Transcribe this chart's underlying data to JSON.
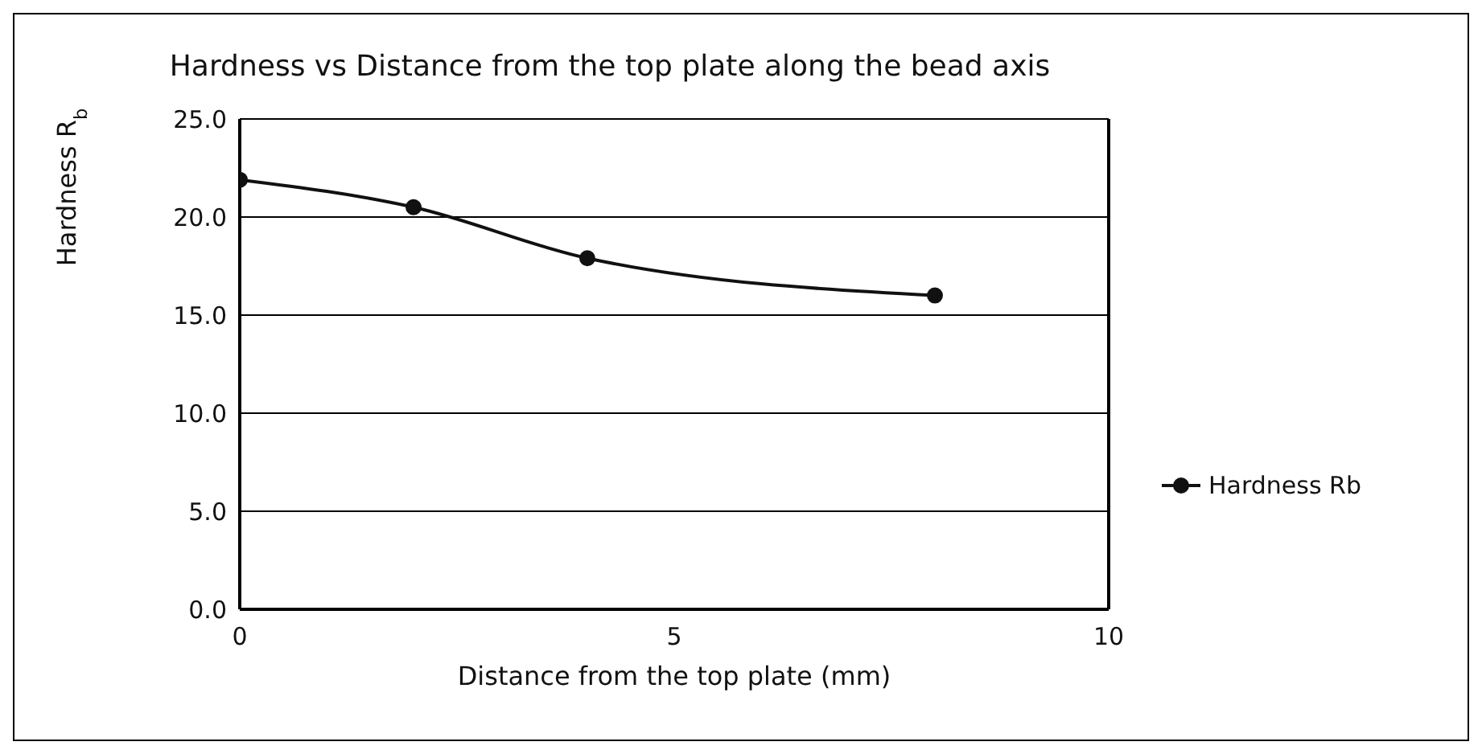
{
  "chart_data": {
    "type": "line",
    "title": "Hardness vs Distance from the top plate along the bead axis",
    "xlabel": "Distance from the top plate (mm)",
    "ylabel": "Hardness R$_{b}$",
    "x": [
      0,
      2,
      4,
      8
    ],
    "series": [
      {
        "name": "Hardness Rb",
        "color": "#111111",
        "values": [
          21.9,
          20.5,
          17.9,
          16.0
        ]
      }
    ],
    "xlim": [
      0,
      10
    ],
    "xticks": [
      0,
      5,
      10
    ],
    "ylim": [
      0,
      25
    ],
    "yticks": [
      {
        "value": 0,
        "label": "0.0"
      },
      {
        "value": 5,
        "label": "5.0"
      },
      {
        "value": 10,
        "label": "10.0"
      },
      {
        "value": 15,
        "label": "15.0"
      },
      {
        "value": 20,
        "label": "20.0"
      },
      {
        "value": 25,
        "label": "25.0"
      }
    ],
    "grid": "y",
    "legend": "right",
    "marker": "circle",
    "line_style": "solid"
  }
}
